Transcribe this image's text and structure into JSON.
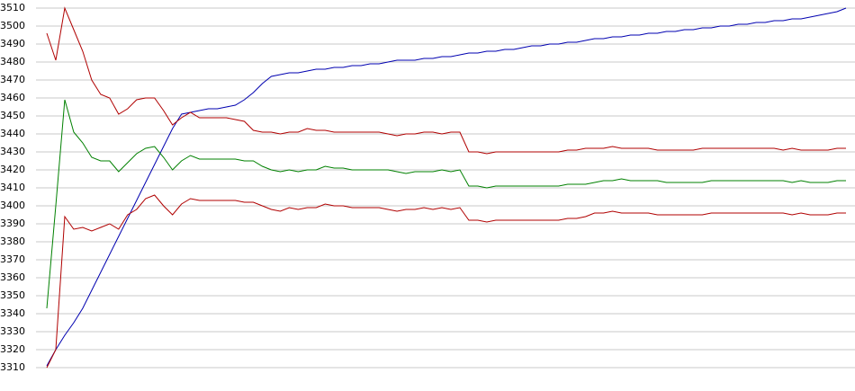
{
  "chart_data": {
    "type": "line",
    "grid": true,
    "ylim": [
      3310,
      3510
    ],
    "yticks": [
      3310,
      3320,
      3330,
      3340,
      3350,
      3360,
      3370,
      3380,
      3390,
      3400,
      3410,
      3420,
      3430,
      3440,
      3450,
      3460,
      3470,
      3480,
      3490,
      3500,
      3510
    ],
    "series": [
      {
        "color": "#0000b0",
        "values": [
          3311,
          3320,
          3328,
          3335,
          3343,
          3353,
          3363,
          3373,
          3383,
          3393,
          3403,
          3413,
          3423,
          3433,
          3443,
          3451,
          3452,
          3453,
          3454,
          3454,
          3455,
          3456,
          3459,
          3463,
          3468,
          3472,
          3473,
          3474,
          3474,
          3475,
          3476,
          3476,
          3477,
          3477,
          3478,
          3478,
          3479,
          3479,
          3480,
          3481,
          3481,
          3481,
          3482,
          3482,
          3483,
          3483,
          3484,
          3485,
          3485,
          3486,
          3486,
          3487,
          3487,
          3488,
          3489,
          3489,
          3490,
          3490,
          3491,
          3491,
          3492,
          3493,
          3493,
          3494,
          3494,
          3495,
          3495,
          3496,
          3496,
          3497,
          3497,
          3498,
          3498,
          3499,
          3499,
          3500,
          3500,
          3501,
          3501,
          3502,
          3502,
          3503,
          3503,
          3504,
          3504,
          3505,
          3506,
          3507,
          3508,
          3510
        ]
      },
      {
        "color": "#b00000",
        "values": [
          3496,
          3481,
          3510,
          3498,
          3486,
          3470,
          3462,
          3460,
          3451,
          3454,
          3459,
          3460,
          3460,
          3453,
          3445,
          3449,
          3452,
          3449,
          3449,
          3449,
          3449,
          3448,
          3447,
          3442,
          3441,
          3441,
          3440,
          3441,
          3441,
          3443,
          3442,
          3442,
          3441,
          3441,
          3441,
          3441,
          3441,
          3441,
          3440,
          3439,
          3440,
          3440,
          3441,
          3441,
          3440,
          3441,
          3441,
          3430,
          3430,
          3429,
          3430,
          3430,
          3430,
          3430,
          3430,
          3430,
          3430,
          3430,
          3431,
          3431,
          3432,
          3432,
          3432,
          3433,
          3432,
          3432,
          3432,
          3432,
          3431,
          3431,
          3431,
          3431,
          3431,
          3432,
          3432,
          3432,
          3432,
          3432,
          3432,
          3432,
          3432,
          3432,
          3431,
          3432,
          3431,
          3431,
          3431,
          3431,
          3432,
          3432
        ]
      },
      {
        "color": "#008000",
        "values": [
          3343,
          3400,
          3459,
          3441,
          3435,
          3427,
          3425,
          3425,
          3419,
          3424,
          3429,
          3432,
          3433,
          3427,
          3420,
          3425,
          3428,
          3426,
          3426,
          3426,
          3426,
          3426,
          3425,
          3425,
          3422,
          3420,
          3419,
          3420,
          3419,
          3420,
          3420,
          3422,
          3421,
          3421,
          3420,
          3420,
          3420,
          3420,
          3420,
          3419,
          3418,
          3419,
          3419,
          3419,
          3420,
          3419,
          3420,
          3411,
          3411,
          3410,
          3411,
          3411,
          3411,
          3411,
          3411,
          3411,
          3411,
          3411,
          3412,
          3412,
          3412,
          3413,
          3414,
          3414,
          3415,
          3414,
          3414,
          3414,
          3414,
          3413,
          3413,
          3413,
          3413,
          3413,
          3414,
          3414,
          3414,
          3414,
          3414,
          3414,
          3414,
          3414,
          3414,
          3413,
          3414,
          3413,
          3413,
          3413,
          3414,
          3414
        ]
      },
      {
        "color": "#b00000",
        "values": [
          3310,
          3320,
          3394,
          3387,
          3388,
          3386,
          3388,
          3390,
          3387,
          3395,
          3398,
          3404,
          3406,
          3400,
          3395,
          3401,
          3404,
          3403,
          3403,
          3403,
          3403,
          3403,
          3402,
          3402,
          3400,
          3398,
          3397,
          3399,
          3398,
          3399,
          3399,
          3401,
          3400,
          3400,
          3399,
          3399,
          3399,
          3399,
          3398,
          3397,
          3398,
          3398,
          3399,
          3398,
          3399,
          3398,
          3399,
          3392,
          3392,
          3391,
          3392,
          3392,
          3392,
          3392,
          3392,
          3392,
          3392,
          3392,
          3393,
          3393,
          3394,
          3396,
          3396,
          3397,
          3396,
          3396,
          3396,
          3396,
          3395,
          3395,
          3395,
          3395,
          3395,
          3395,
          3396,
          3396,
          3396,
          3396,
          3396,
          3396,
          3396,
          3396,
          3396,
          3395,
          3396,
          3395,
          3395,
          3395,
          3396,
          3396
        ]
      }
    ]
  }
}
